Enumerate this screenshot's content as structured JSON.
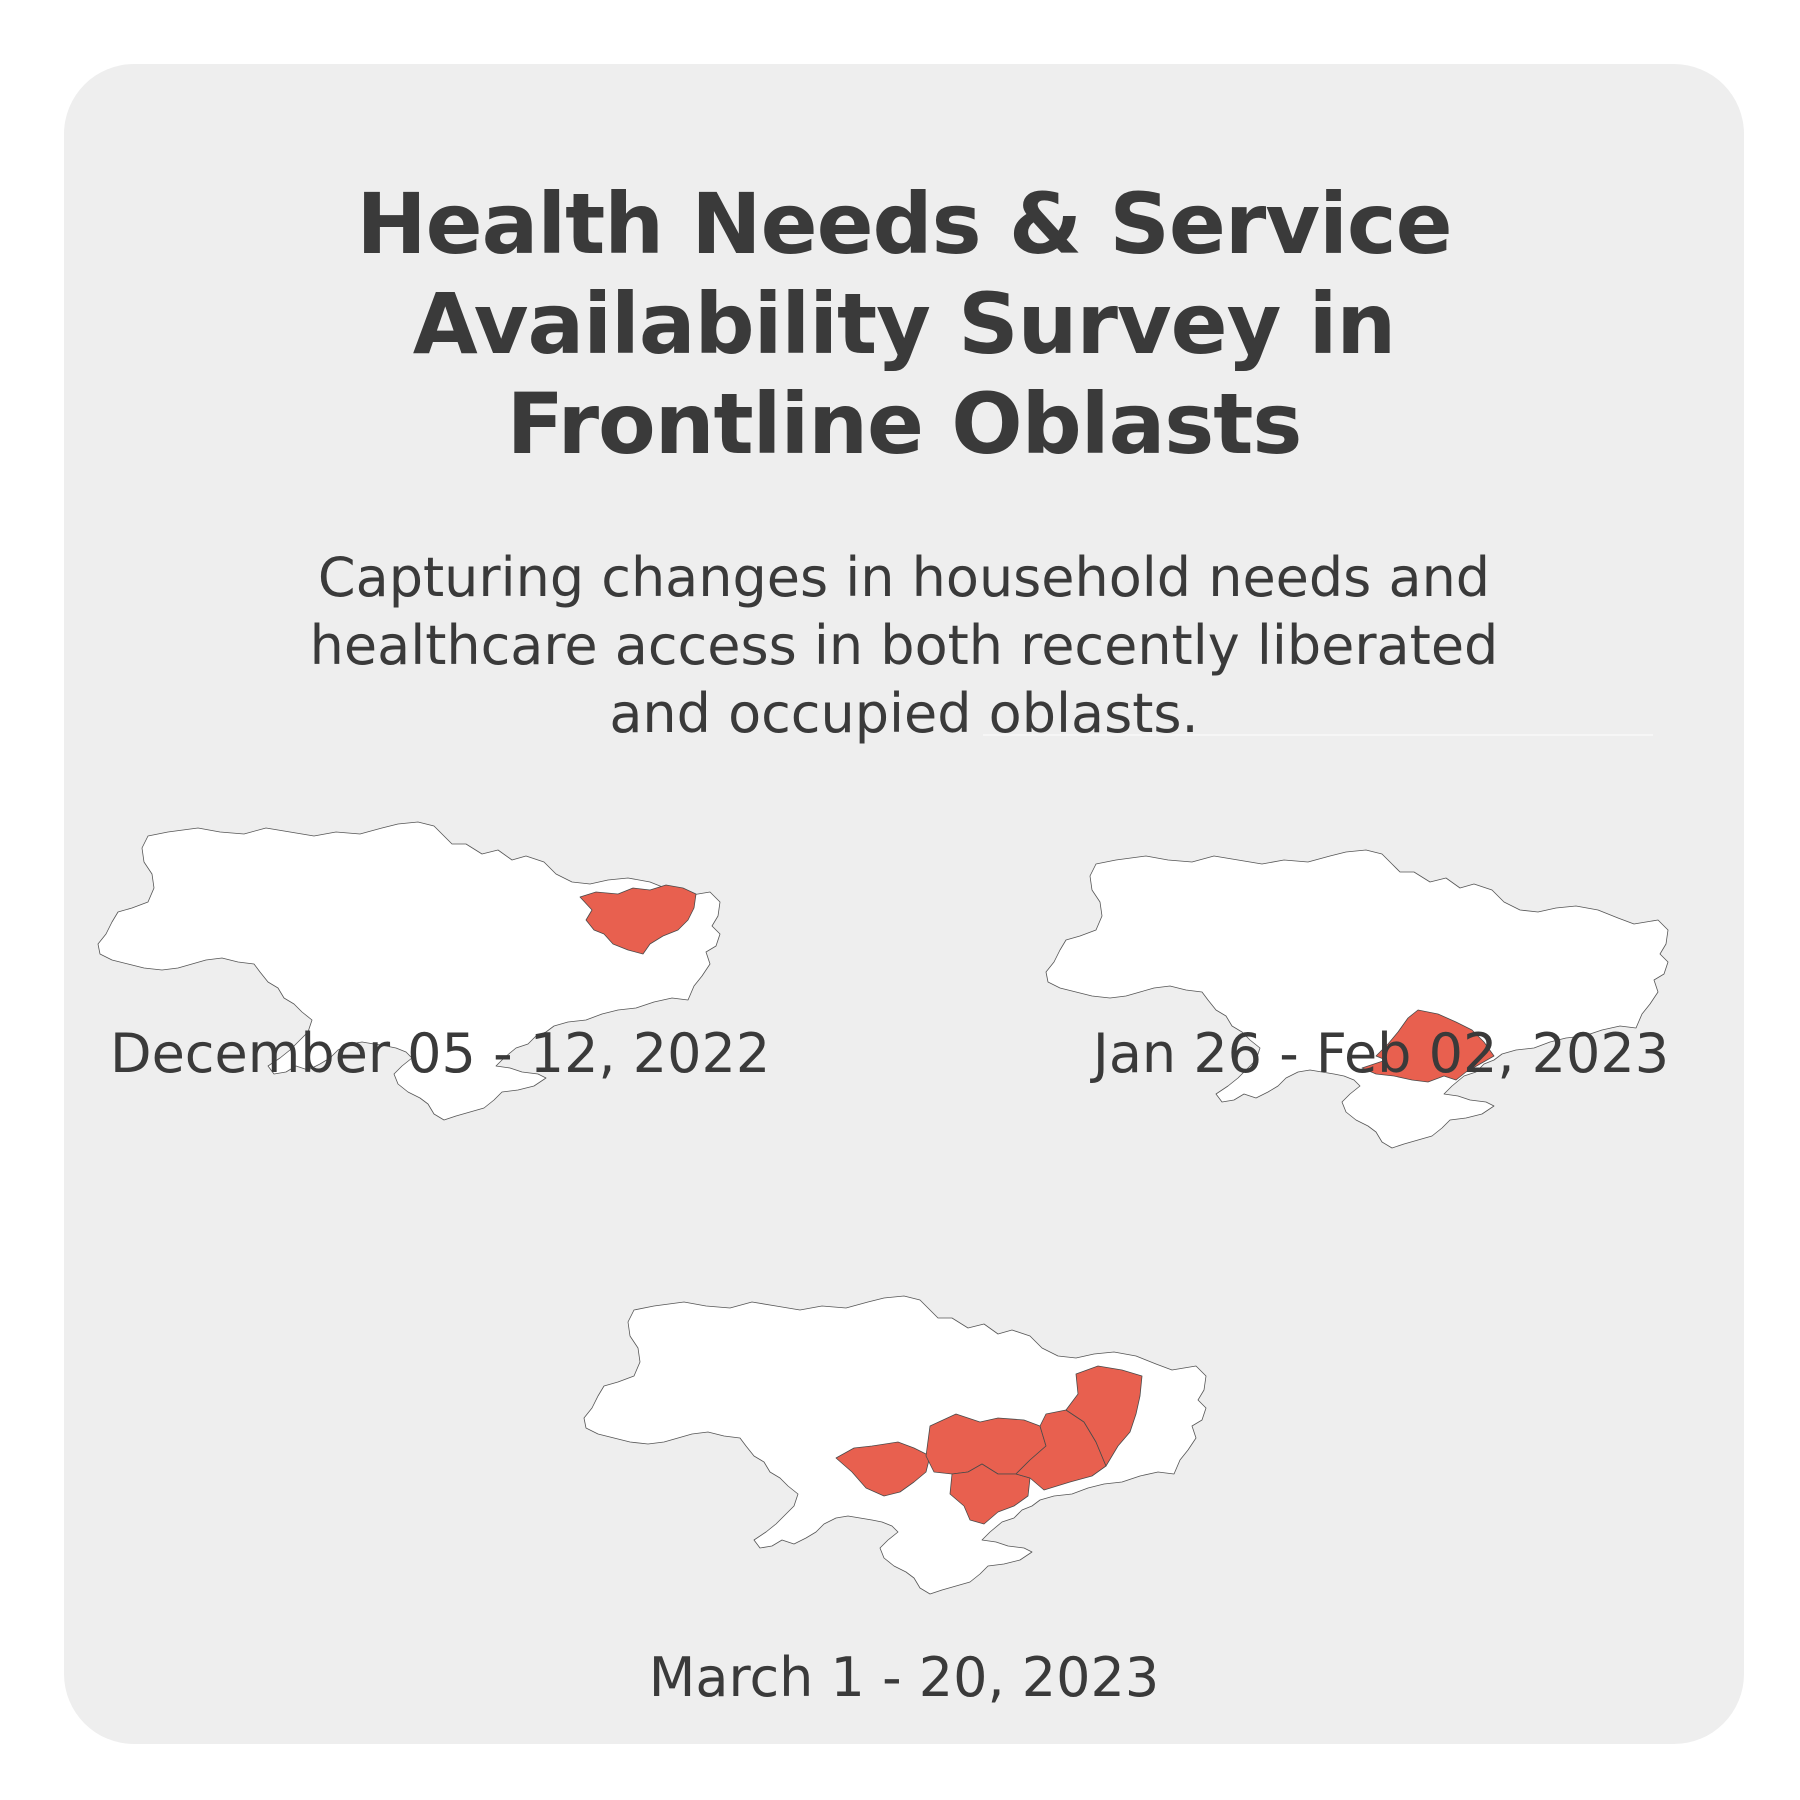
{
  "title": {
    "line1": "Health Needs & Service",
    "line2": "Availability Survey in",
    "line3": "Frontline Oblasts"
  },
  "subtitle": {
    "line1": "Capturing changes in household needs and",
    "line2": "healthcare access in both recently liberated",
    "line3": "and occupied oblasts."
  },
  "maps": [
    {
      "date": "December 05 - 12, 2022"
    },
    {
      "date": "Jan 26 - Feb 02, 2023"
    },
    {
      "date": "March 1 - 20, 2023"
    }
  ],
  "colors": {
    "card_background": "#eeeeee",
    "country_fill": "#ffffff",
    "highlight_fill": "#e8604f",
    "text": "#3a3a3a"
  }
}
